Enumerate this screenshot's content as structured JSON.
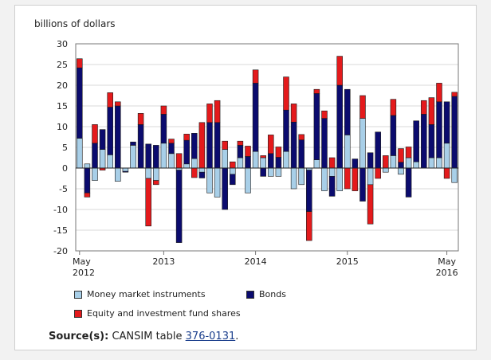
{
  "chart_data": {
    "type": "bar",
    "stacked": true,
    "ylabel": "billions of dollars",
    "ylim": [
      -20,
      30
    ],
    "yticks": [
      -20,
      -15,
      -10,
      -5,
      0,
      5,
      10,
      15,
      20,
      25,
      30
    ],
    "grid": true,
    "x_labels": [
      {
        "index": 0,
        "lines": [
          "May",
          "2012"
        ]
      },
      {
        "index": 11,
        "lines": [
          "2013"
        ]
      },
      {
        "index": 23,
        "lines": [
          "2014"
        ]
      },
      {
        "index": 35,
        "lines": [
          "2015"
        ]
      },
      {
        "index": 48,
        "lines": [
          "May",
          "2016"
        ]
      }
    ],
    "series": [
      {
        "name": "Money market instruments",
        "color": "#a8cfe8",
        "values": [
          7.2,
          1,
          -3,
          4.5,
          3.2,
          -3.2,
          -0.8,
          5.5,
          0,
          -2.5,
          -3,
          6,
          3.5,
          -0.5,
          1,
          2.3,
          -1,
          -6,
          -7,
          4.5,
          -1.5,
          2.5,
          -6,
          4,
          2.5,
          -2,
          -2,
          4,
          -5,
          -4,
          -0.5,
          2,
          -5.5,
          -2,
          -5.5,
          8,
          0,
          12,
          -4,
          0,
          -1,
          3,
          -1.5,
          2.5,
          1.5,
          0,
          2.5,
          2.5,
          6,
          -3.5
        ]
      },
      {
        "name": "Bonds",
        "color": "#0b0b6e",
        "values": [
          17,
          -6,
          6,
          4.8,
          11.5,
          15,
          -0.2,
          0.8,
          10.5,
          5.8,
          5.5,
          7,
          2.5,
          -17.5,
          5.7,
          6.1,
          -1.4,
          11,
          11,
          -10,
          -2.5,
          3,
          2.8,
          16.5,
          -2,
          3.5,
          2.6,
          10,
          11.1,
          6.8,
          -10,
          16,
          12,
          -4.8,
          20,
          11,
          2.2,
          -8,
          3.7,
          8.7,
          0,
          9.7,
          1.4,
          -7,
          9.9,
          13,
          8,
          13.5,
          10,
          17.3
        ]
      },
      {
        "name": "Equity and investment fund shares",
        "color": "#e41a1c",
        "values": [
          2.2,
          -1,
          4.5,
          -0.5,
          3.5,
          1,
          0,
          0,
          2.7,
          -11.5,
          -1,
          2,
          1,
          3.5,
          1.5,
          -2.3,
          11,
          4.5,
          5.3,
          2,
          1.5,
          1,
          2.5,
          3.2,
          0.5,
          4.5,
          2.5,
          8,
          4.4,
          1.3,
          -7,
          1,
          1.8,
          2.5,
          7,
          -5,
          -5.5,
          5.5,
          -9.5,
          -2.5,
          3,
          3.9,
          3.3,
          2.6,
          0,
          3.3,
          6.5,
          4.5,
          -2.5,
          1
        ]
      }
    ],
    "legend": "bottom"
  },
  "legend": {
    "mmi_label": "Money market instruments",
    "bonds_label": "Bonds",
    "equity_label": "Equity and investment fund shares"
  },
  "source": {
    "label": "Source(s):",
    "text": "CANSIM table",
    "link": "376-0131",
    "suffix": "."
  }
}
